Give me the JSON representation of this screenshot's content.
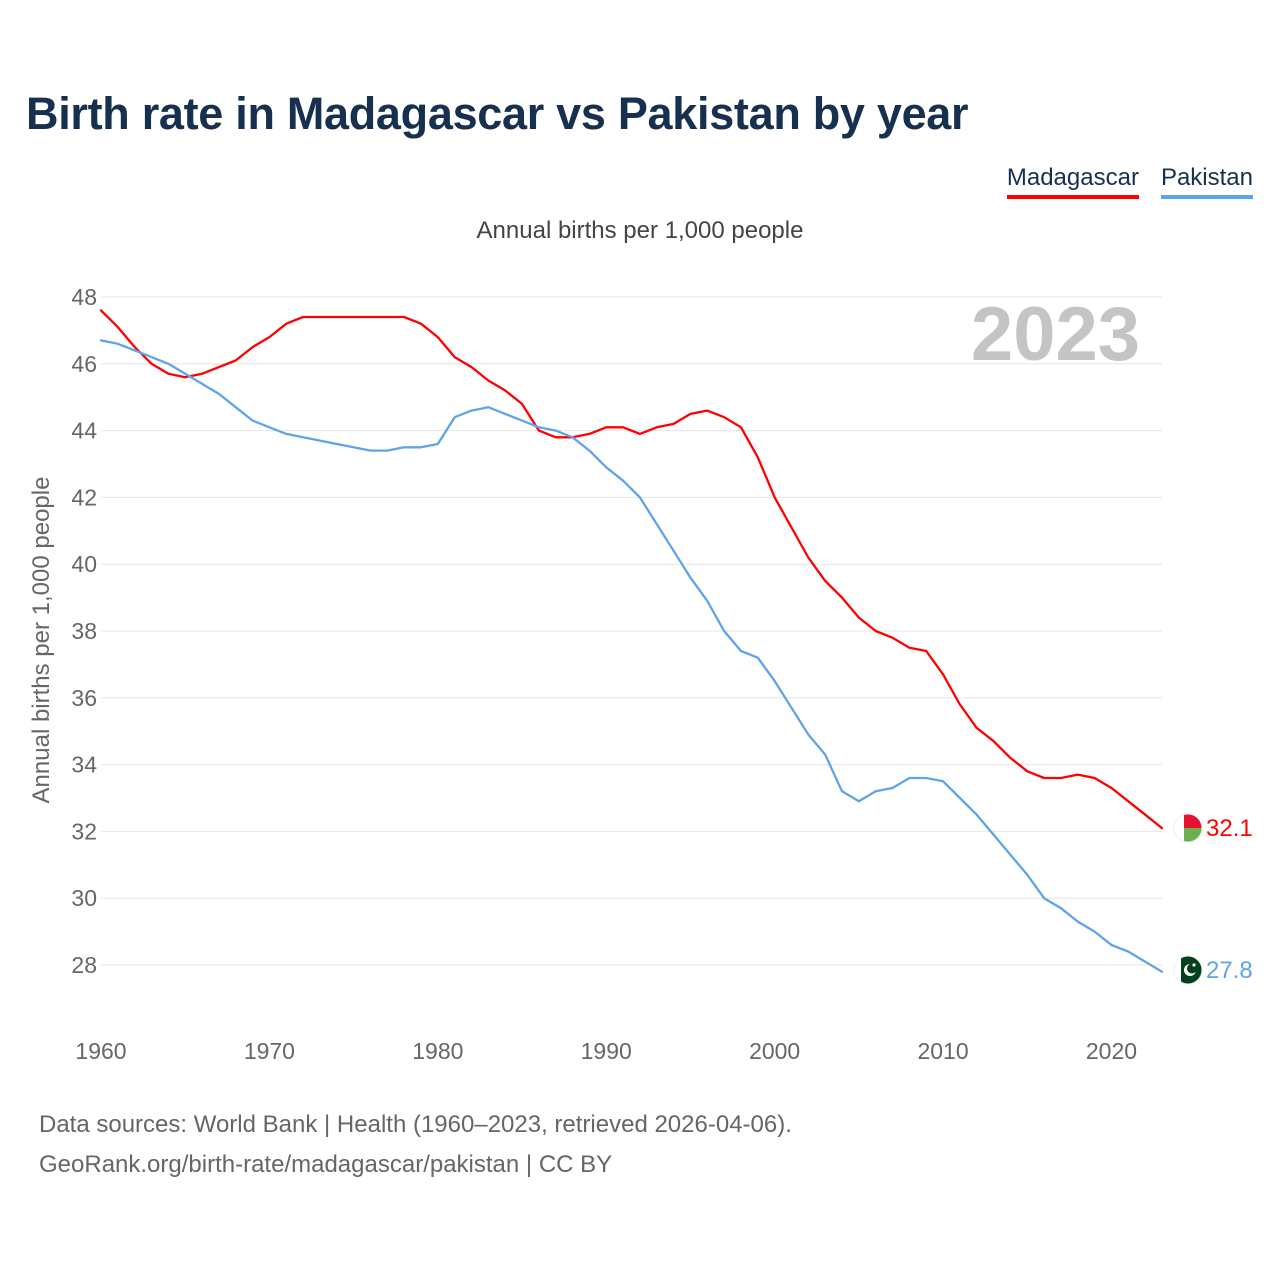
{
  "title": "Birth rate in Madagascar vs Pakistan by year",
  "subtitle": "Annual births per 1,000 people",
  "legend": [
    {
      "label": "Madagascar",
      "color": "#ff0000"
    },
    {
      "label": "Pakistan",
      "color": "#5ea4e8"
    }
  ],
  "year_mark": "2023",
  "source": {
    "line1": "Data sources: World Bank | Health (1960–2023, retrieved 2026-04-06).",
    "line2": "GeoRank.org/birth-rate/madagascar/pakistan | CC BY"
  },
  "chart_data": {
    "type": "line",
    "title": "Birth rate in Madagascar vs Pakistan by year",
    "subtitle": "Annual births per 1,000 people",
    "xlabel": "",
    "ylabel": "Annual births per 1,000 people",
    "xlim": [
      1960,
      2023
    ],
    "ylim": [
      27,
      48
    ],
    "x_ticks": [
      1960,
      1970,
      1980,
      1990,
      2000,
      2010,
      2020
    ],
    "y_ticks": [
      28,
      30,
      32,
      34,
      36,
      38,
      40,
      42,
      44,
      46,
      48
    ],
    "grid": true,
    "legend_position": "top-right",
    "x": [
      1960,
      1961,
      1962,
      1963,
      1964,
      1965,
      1966,
      1967,
      1968,
      1969,
      1970,
      1971,
      1972,
      1973,
      1974,
      1975,
      1976,
      1977,
      1978,
      1979,
      1980,
      1981,
      1982,
      1983,
      1984,
      1985,
      1986,
      1987,
      1988,
      1989,
      1990,
      1991,
      1992,
      1993,
      1994,
      1995,
      1996,
      1997,
      1998,
      1999,
      2000,
      2001,
      2002,
      2003,
      2004,
      2005,
      2006,
      2007,
      2008,
      2009,
      2010,
      2011,
      2012,
      2013,
      2014,
      2015,
      2016,
      2017,
      2018,
      2019,
      2020,
      2021,
      2022,
      2023
    ],
    "series": [
      {
        "name": "Madagascar",
        "color": "#ff0000",
        "end_label": "32.1",
        "values": [
          47.6,
          47.1,
          46.5,
          46.0,
          45.7,
          45.6,
          45.7,
          45.9,
          46.1,
          46.5,
          46.8,
          47.2,
          47.4,
          47.4,
          47.4,
          47.4,
          47.4,
          47.4,
          47.4,
          47.2,
          46.8,
          46.2,
          45.9,
          45.5,
          45.2,
          44.8,
          44.0,
          43.8,
          43.8,
          43.9,
          44.1,
          44.1,
          43.9,
          44.1,
          44.2,
          44.5,
          44.6,
          44.4,
          44.1,
          43.2,
          42.0,
          41.1,
          40.2,
          39.5,
          39.0,
          38.4,
          38.0,
          37.8,
          37.5,
          37.4,
          36.7,
          35.8,
          35.1,
          34.7,
          34.2,
          33.8,
          33.6,
          33.6,
          33.7,
          33.6,
          33.3,
          32.9,
          32.5,
          32.1
        ]
      },
      {
        "name": "Pakistan",
        "color": "#5ea4e8",
        "end_label": "27.8",
        "values": [
          46.7,
          46.6,
          46.4,
          46.2,
          46.0,
          45.7,
          45.4,
          45.1,
          44.7,
          44.3,
          44.1,
          43.9,
          43.8,
          43.7,
          43.6,
          43.5,
          43.4,
          43.4,
          43.5,
          43.5,
          43.6,
          44.4,
          44.6,
          44.7,
          44.5,
          44.3,
          44.1,
          44.0,
          43.8,
          43.4,
          42.9,
          42.5,
          42.0,
          41.2,
          40.4,
          39.6,
          38.9,
          38.0,
          37.4,
          37.2,
          36.5,
          35.7,
          34.9,
          34.3,
          33.2,
          32.9,
          33.2,
          33.3,
          33.6,
          33.6,
          33.5,
          33.0,
          32.5,
          31.9,
          31.3,
          30.7,
          30.0,
          29.7,
          29.3,
          29.0,
          28.6,
          28.4,
          28.1,
          27.8
        ]
      }
    ]
  }
}
